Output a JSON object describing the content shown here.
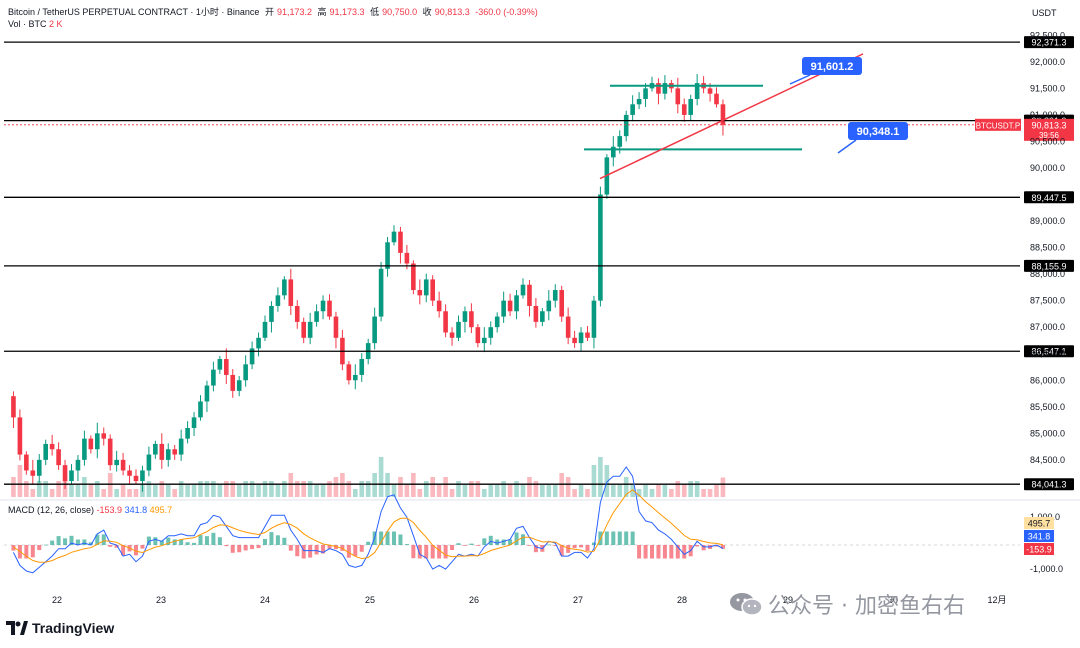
{
  "header": {
    "symbol": "Bitcoin / TetherUS PERPETUAL CONTRACT · 1小时 · Binance",
    "open_label": "开",
    "open": "91,173.2",
    "high_label": "高",
    "high": "91,173.3",
    "low_label": "低",
    "low": "90,750.0",
    "close_label": "收",
    "close": "90,813.3",
    "change": "-360.0 (-0.39%)",
    "volume_label": "Vol · BTC",
    "volume": "2 K",
    "currency": "USDT"
  },
  "macd_header": {
    "label": "MACD (12, 26, close)",
    "hist": "-153.9",
    "macd": "341.8",
    "signal": "495.7"
  },
  "watermark": "公众号 · 加密鱼右右",
  "branding": "TradingView",
  "colors": {
    "up": "#089981",
    "down": "#f23645",
    "level_line": "#000000",
    "trend": "#f23645",
    "box": "#089981",
    "callout": "#2962ff",
    "macd_line": "#2962ff",
    "signal_line": "#ff9800"
  },
  "chart_data": {
    "type": "candlestick",
    "x_label": "",
    "y_label": "",
    "x_ticks": [
      "22",
      "23",
      "24",
      "25",
      "26",
      "27",
      "28",
      "29",
      "30",
      "12月"
    ],
    "y_range": [
      83800,
      92600
    ],
    "y_ticks": [
      84500,
      85000,
      85500,
      86000,
      86500,
      87000,
      87500,
      88000,
      88500,
      89000,
      90000,
      90500,
      91000,
      91500,
      92000,
      92500
    ],
    "y_tick_labels": [
      "84,500.0",
      "85,000.0",
      "85,500.0",
      "86,000.0",
      "86,500.0",
      "87,000.0",
      "87,500.0",
      "88,000.0",
      "88,500.0",
      "89,000.0",
      "90,000.0",
      "90,500.0",
      "91,000.0",
      "91,500.0",
      "92,000.0",
      "92,500.0"
    ],
    "levels": [
      {
        "value": 92371.3,
        "label": "92,371.3"
      },
      {
        "value": 90891.9,
        "label": "90,891.9"
      },
      {
        "value": 89447.5,
        "label": "89,447.5"
      },
      {
        "value": 88155.9,
        "label": "88,155.9"
      },
      {
        "value": 86547.1,
        "label": "86,547.1"
      },
      {
        "value": 84041.3,
        "label": "84,041.3"
      }
    ],
    "current_price": {
      "symbol": "BTCUSDT.P",
      "value": "90,813.3",
      "countdown": "39:56"
    },
    "annotations": [
      {
        "text": "91,601.2",
        "value": 91601.2
      },
      {
        "text": "90,348.1",
        "value": 90348.1
      }
    ],
    "price_path": [
      85700,
      85300,
      84600,
      84300,
      84200,
      84500,
      84800,
      84700,
      84400,
      84100,
      84300,
      84500,
      84900,
      84700,
      85000,
      84900,
      84400,
      84500,
      84300,
      84200,
      84100,
      84300,
      84600,
      84800,
      84500,
      84700,
      84600,
      84900,
      85100,
      85300,
      85600,
      85900,
      86200,
      86400,
      86100,
      85800,
      86000,
      86300,
      86600,
      86800,
      87100,
      87400,
      87600,
      87900,
      87400,
      87100,
      86800,
      87100,
      87300,
      87500,
      87200,
      86800,
      86300,
      86000,
      86100,
      86400,
      86700,
      87200,
      88100,
      88600,
      88800,
      88400,
      88200,
      87700,
      87600,
      87900,
      87500,
      87300,
      86900,
      86800,
      87100,
      87300,
      87000,
      86700,
      86800,
      87000,
      87200,
      87500,
      87300,
      87600,
      87800,
      87400,
      87100,
      87300,
      87500,
      87700,
      87200,
      86800,
      86700,
      86900,
      86800,
      87500,
      89500,
      90200,
      90400,
      90600,
      91000,
      91200,
      91300,
      91500,
      91600,
      91400,
      91600,
      91500,
      91200,
      91000,
      91300,
      91600,
      91500,
      91400,
      91200,
      90813.3
    ],
    "macd_hist_range": [
      -1000,
      1000
    ],
    "macd_ticks": [
      1000,
      -1000
    ],
    "macd_tick_labels": [
      "1,000.0",
      "-1,000.0"
    ],
    "macd_last": {
      "signal": "495.7",
      "macd": "341.8",
      "hist": "-153.9"
    }
  }
}
